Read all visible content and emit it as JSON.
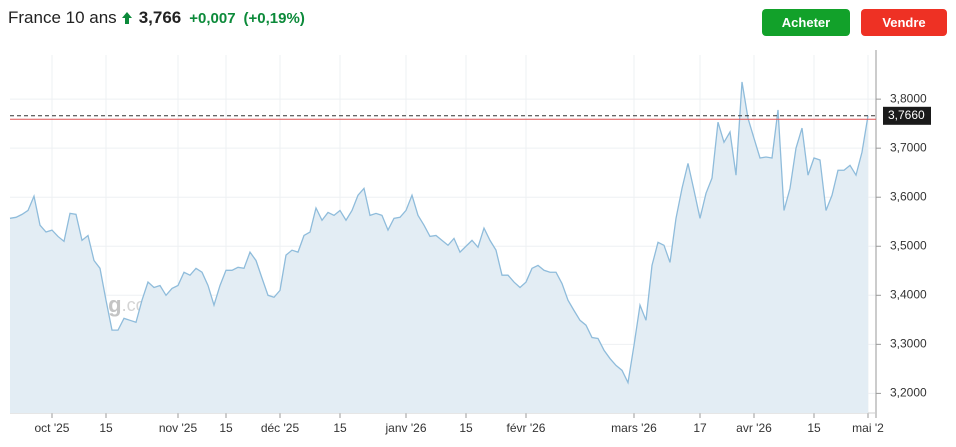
{
  "header": {
    "name": "France 10 ans",
    "price": "3,766",
    "change": "+0,007",
    "change_pct": "(+0,19%)"
  },
  "buttons": {
    "buy": "Acheter",
    "sell": "Vendre"
  },
  "chart_data": {
    "type": "area",
    "color": "#8fbcdb",
    "watermark_brand": "Investing",
    "watermark_suffix": ".com",
    "categories": [
      null,
      null,
      null,
      null,
      null,
      null,
      null,
      "oct '25",
      null,
      null,
      null,
      null,
      null,
      null,
      null,
      null,
      "15",
      null,
      null,
      null,
      null,
      null,
      null,
      null,
      null,
      null,
      null,
      null,
      "nov '25",
      null,
      null,
      null,
      null,
      null,
      null,
      null,
      "15",
      null,
      null,
      null,
      null,
      null,
      null,
      null,
      null,
      "déc '25",
      null,
      null,
      null,
      null,
      null,
      null,
      null,
      null,
      null,
      "15",
      null,
      null,
      null,
      null,
      null,
      null,
      null,
      null,
      null,
      null,
      "janv '26",
      null,
      null,
      null,
      null,
      null,
      null,
      null,
      null,
      null,
      "15",
      null,
      null,
      null,
      null,
      null,
      null,
      null,
      null,
      null,
      "févr '26",
      null,
      null,
      null,
      null,
      null,
      null,
      null,
      null,
      null,
      null,
      null,
      null,
      null,
      null,
      null,
      null,
      null,
      "mars '26",
      null,
      null,
      null,
      null,
      null,
      null,
      null,
      null,
      null,
      null,
      "17",
      null,
      null,
      null,
      null,
      null,
      null,
      null,
      null,
      "avr '26",
      null,
      null,
      null,
      null,
      null,
      null,
      null,
      null,
      null,
      "15",
      null,
      null,
      null,
      null,
      null,
      null,
      null,
      null,
      "mai '2"
    ],
    "values": [
      3.557,
      3.559,
      3.565,
      3.573,
      3.602,
      3.543,
      3.529,
      3.533,
      3.52,
      3.51,
      3.567,
      3.565,
      3.512,
      3.522,
      3.471,
      3.455,
      3.39,
      3.329,
      3.329,
      3.353,
      3.349,
      3.345,
      3.39,
      3.427,
      3.416,
      3.42,
      3.4,
      3.414,
      3.42,
      3.447,
      3.441,
      3.455,
      3.447,
      3.42,
      3.38,
      3.42,
      3.451,
      3.451,
      3.457,
      3.455,
      3.488,
      3.471,
      3.435,
      3.4,
      3.396,
      3.41,
      3.482,
      3.492,
      3.488,
      3.522,
      3.529,
      3.578,
      3.553,
      3.569,
      3.563,
      3.573,
      3.553,
      3.573,
      3.604,
      3.618,
      3.563,
      3.567,
      3.563,
      3.533,
      3.557,
      3.559,
      3.573,
      3.604,
      3.563,
      3.543,
      3.52,
      3.522,
      3.512,
      3.502,
      3.516,
      3.488,
      3.5,
      3.512,
      3.498,
      3.537,
      3.512,
      3.492,
      3.441,
      3.441,
      3.427,
      3.416,
      3.427,
      3.455,
      3.461,
      3.451,
      3.447,
      3.447,
      3.424,
      3.39,
      3.369,
      3.349,
      3.339,
      3.314,
      3.312,
      3.288,
      3.271,
      3.257,
      3.247,
      3.222,
      3.298,
      3.38,
      3.349,
      3.461,
      3.508,
      3.502,
      3.467,
      3.557,
      3.618,
      3.669,
      3.614,
      3.557,
      3.608,
      3.639,
      3.753,
      3.712,
      3.733,
      3.645,
      3.835,
      3.761,
      3.72,
      3.68,
      3.682,
      3.68,
      3.778,
      3.573,
      3.618,
      3.7,
      3.741,
      3.645,
      3.68,
      3.676,
      3.573,
      3.604,
      3.655,
      3.655,
      3.665,
      3.645,
      3.692,
      3.766
    ],
    "ylim": [
      3.16,
      3.89
    ],
    "yticks": [
      {
        "value": 3.2,
        "label": "3,2000"
      },
      {
        "value": 3.3,
        "label": "3,3000"
      },
      {
        "value": 3.4,
        "label": "3,4000"
      },
      {
        "value": 3.5,
        "label": "3,5000"
      },
      {
        "value": 3.6,
        "label": "3,6000"
      },
      {
        "value": 3.7,
        "label": "3,7000"
      },
      {
        "value": 3.8,
        "label": "3,8000"
      }
    ],
    "last_price": {
      "value": 3.766,
      "label": "3,7660"
    },
    "previous_close": 3.759,
    "grid": true
  }
}
